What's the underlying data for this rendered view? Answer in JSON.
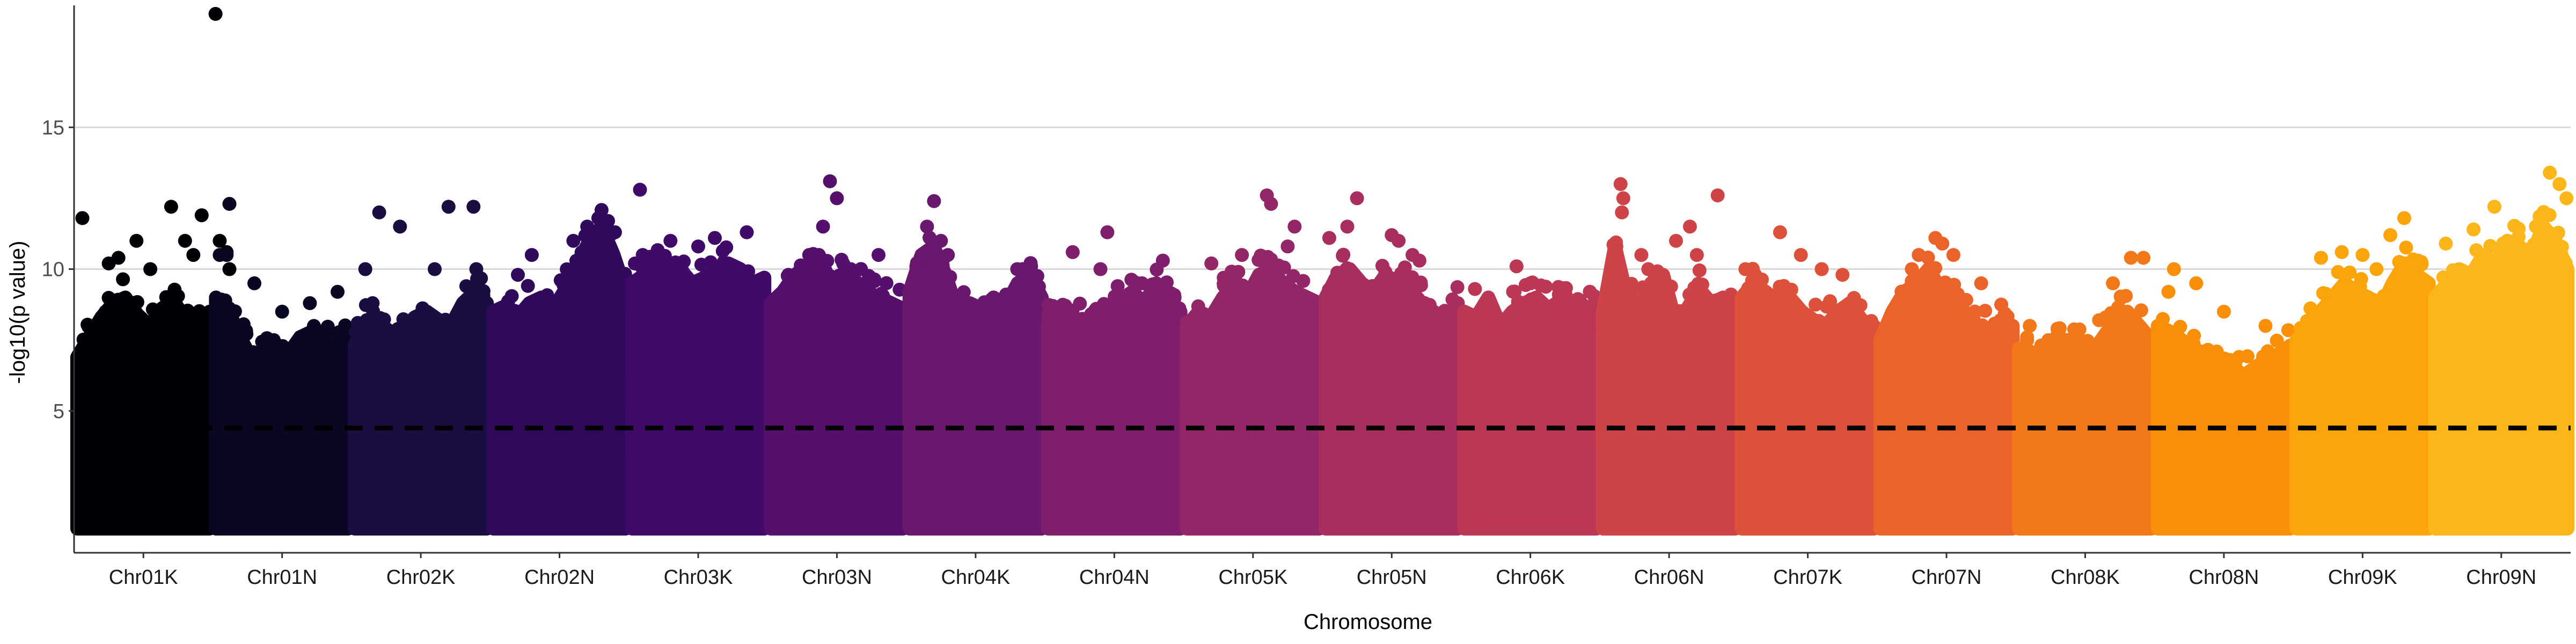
{
  "chart_data": {
    "type": "scatter",
    "subtype": "manhattan",
    "title": "",
    "xlabel": "Chromosome",
    "ylabel": "-log10(p value)",
    "ylim": [
      0,
      19.3
    ],
    "yticks": [
      5,
      10,
      15
    ],
    "grid": "horizontal-major",
    "legend": "none",
    "point_floor": 1.1,
    "threshold": {
      "value": 4.4,
      "style": "dashed",
      "color": "#000000"
    },
    "categories": [
      "Chr01K",
      "Chr01N",
      "Chr02K",
      "Chr02N",
      "Chr03K",
      "Chr03N",
      "Chr04K",
      "Chr04N",
      "Chr05K",
      "Chr05N",
      "Chr06K",
      "Chr06N",
      "Chr07K",
      "Chr07N",
      "Chr08K",
      "Chr08N",
      "Chr09K",
      "Chr09N"
    ],
    "colors": [
      "#000004",
      "#0a0722",
      "#1b0c41",
      "#2f0a5b",
      "#420a68",
      "#550f6d",
      "#6a176e",
      "#7e1e6c",
      "#932667",
      "#a82e5f",
      "#bc3754",
      "#cd4347",
      "#dd513a",
      "#eb6328",
      "#f37819",
      "#f98e09",
      "#fca50a",
      "#fbb61a"
    ],
    "series": [
      {
        "name": "Chr01K",
        "dense_top": [
          6.9,
          7.6,
          8.3,
          8.8,
          9.0,
          8.4,
          8.0,
          8.6,
          8.9,
          8.2,
          7.8,
          8.5
        ],
        "peaks": [
          [
            0.06,
            11.8
          ],
          [
            0.25,
            10.2
          ],
          [
            0.32,
            10.4
          ],
          [
            0.45,
            11.0
          ],
          [
            0.55,
            10.0
          ],
          [
            0.7,
            12.2
          ],
          [
            0.8,
            11.0
          ],
          [
            0.86,
            10.5
          ],
          [
            0.92,
            11.9
          ],
          [
            1.02,
            19.0
          ],
          [
            1.05,
            11.0
          ],
          [
            1.1,
            10.6
          ],
          [
            1.12,
            10.0
          ]
        ]
      },
      {
        "name": "Chr01N",
        "dense_top": [
          9.0,
          8.5,
          7.6,
          6.8,
          6.9,
          7.3,
          7.0,
          7.6,
          7.8,
          7.5,
          7.2,
          7.8
        ],
        "peaks": [
          [
            0.05,
            10.5
          ],
          [
            0.12,
            12.3
          ],
          [
            0.1,
            10.5
          ],
          [
            0.3,
            9.5
          ],
          [
            0.5,
            8.5
          ],
          [
            0.7,
            8.8
          ],
          [
            0.9,
            9.2
          ]
        ]
      },
      {
        "name": "Chr02K",
        "dense_top": [
          7.3,
          8.2,
          8.0,
          7.6,
          7.9,
          8.3,
          8.5,
          8.2,
          8.0,
          8.8,
          9.2,
          8.8
        ],
        "peaks": [
          [
            0.1,
            10.0
          ],
          [
            0.2,
            12.0
          ],
          [
            0.35,
            11.5
          ],
          [
            0.7,
            12.2
          ],
          [
            0.88,
            12.2
          ],
          [
            0.9,
            10.0
          ],
          [
            0.6,
            10.0
          ]
        ]
      },
      {
        "name": "Chr02N",
        "dense_top": [
          8.5,
          8.7,
          8.3,
          8.8,
          9.0,
          8.6,
          9.3,
          10.2,
          11.0,
          11.5,
          10.5,
          9.2
        ],
        "peaks": [
          [
            0.2,
            9.8
          ],
          [
            0.3,
            10.5
          ],
          [
            0.6,
            11.0
          ],
          [
            0.7,
            11.5
          ],
          [
            0.78,
            11.8
          ],
          [
            0.85,
            11.7
          ],
          [
            0.9,
            11.3
          ]
        ]
      },
      {
        "name": "Chr03K",
        "dense_top": [
          9.5,
          9.8,
          10.2,
          9.8,
          10.0,
          9.5,
          9.7,
          9.9,
          10.2,
          10.0,
          9.5,
          9.7
        ],
        "peaks": [
          [
            0.08,
            12.8
          ],
          [
            0.1,
            10.5
          ],
          [
            0.3,
            11.0
          ],
          [
            0.5,
            10.8
          ],
          [
            0.62,
            11.1
          ],
          [
            0.7,
            10.0
          ],
          [
            0.85,
            11.3
          ]
        ]
      },
      {
        "name": "Chr03N",
        "dense_top": [
          8.8,
          9.2,
          9.8,
          10.0,
          10.5,
          9.5,
          9.8,
          9.6,
          9.2,
          9.0,
          8.8,
          8.6
        ],
        "peaks": [
          [
            0.15,
            9.8
          ],
          [
            0.3,
            10.5
          ],
          [
            0.4,
            11.5
          ],
          [
            0.45,
            13.1
          ],
          [
            0.5,
            12.5
          ],
          [
            0.6,
            10.0
          ],
          [
            0.8,
            10.5
          ]
        ]
      },
      {
        "name": "Chr04K",
        "dense_top": [
          9.2,
          10.5,
          10.8,
          9.8,
          8.5,
          8.8,
          8.6,
          9.0,
          8.7,
          9.5,
          9.8,
          9.0
        ],
        "peaks": [
          [
            0.15,
            11.5
          ],
          [
            0.2,
            12.4
          ],
          [
            0.25,
            11.0
          ],
          [
            0.3,
            10.5
          ],
          [
            0.8,
            10.0
          ],
          [
            0.9,
            10.1
          ]
        ]
      },
      {
        "name": "Chr04N",
        "dense_top": [
          8.2,
          8.5,
          8.3,
          8.0,
          8.6,
          8.4,
          8.9,
          9.2,
          8.8,
          9.5,
          9.0,
          8.5
        ],
        "peaks": [
          [
            0.2,
            10.6
          ],
          [
            0.4,
            10.0
          ],
          [
            0.45,
            11.3
          ],
          [
            0.85,
            10.3
          ],
          [
            0.7,
            9.5
          ]
        ]
      },
      {
        "name": "Chr05K",
        "dense_top": [
          8.0,
          8.5,
          8.3,
          9.0,
          9.5,
          9.0,
          9.8,
          10.0,
          9.5,
          9.2,
          9.0,
          8.8
        ],
        "peaks": [
          [
            0.2,
            10.2
          ],
          [
            0.42,
            10.5
          ],
          [
            0.6,
            12.6
          ],
          [
            0.63,
            12.3
          ],
          [
            0.68,
            10.0
          ],
          [
            0.75,
            10.8
          ],
          [
            0.8,
            11.5
          ]
        ]
      },
      {
        "name": "Chr05N",
        "dense_top": [
          9.0,
          9.8,
          10.0,
          9.5,
          9.2,
          9.8,
          9.5,
          9.3,
          8.8,
          8.5,
          8.2,
          8.8
        ],
        "peaks": [
          [
            0.05,
            11.1
          ],
          [
            0.18,
            11.5
          ],
          [
            0.25,
            12.5
          ],
          [
            0.5,
            11.2
          ],
          [
            0.55,
            11.0
          ],
          [
            0.65,
            10.5
          ],
          [
            0.7,
            10.3
          ]
        ]
      },
      {
        "name": "Chr06K",
        "dense_top": [
          8.5,
          8.3,
          9.0,
          8.0,
          8.5,
          8.8,
          9.0,
          8.6,
          8.9,
          8.4,
          8.7,
          8.3
        ],
        "peaks": [
          [
            0.1,
            9.3
          ],
          [
            0.4,
            10.1
          ],
          [
            0.5,
            9.5
          ],
          [
            0.75,
            9.3
          ]
        ]
      },
      {
        "name": "Chr06N",
        "dense_top": [
          8.5,
          10.8,
          9.0,
          8.5,
          9.5,
          9.8,
          8.2,
          8.6,
          9.3,
          8.8,
          9.0,
          8.5
        ],
        "peaks": [
          [
            0.15,
            13.0
          ],
          [
            0.17,
            12.5
          ],
          [
            0.16,
            12.0
          ],
          [
            0.3,
            10.5
          ],
          [
            0.35,
            10.0
          ],
          [
            0.65,
            11.5
          ],
          [
            0.55,
            11.0
          ],
          [
            0.85,
            12.6
          ],
          [
            0.7,
            10.5
          ]
        ]
      },
      {
        "name": "Chr07K",
        "dense_top": [
          9.0,
          9.5,
          9.2,
          8.8,
          9.0,
          8.5,
          8.2,
          8.0,
          8.5,
          8.8,
          8.2,
          8.0
        ],
        "peaks": [
          [
            0.05,
            10.0
          ],
          [
            0.12,
            9.8
          ],
          [
            0.3,
            11.3
          ],
          [
            0.45,
            10.5
          ],
          [
            0.6,
            10.0
          ],
          [
            0.75,
            9.8
          ]
        ]
      },
      {
        "name": "Chr07N",
        "dense_top": [
          7.5,
          8.5,
          9.2,
          9.5,
          10.0,
          9.3,
          8.8,
          8.5,
          8.0,
          7.8,
          8.2,
          8.0
        ],
        "peaks": [
          [
            0.25,
            10.0
          ],
          [
            0.3,
            10.5
          ],
          [
            0.42,
            11.1
          ],
          [
            0.47,
            10.9
          ],
          [
            0.55,
            10.5
          ],
          [
            0.75,
            9.5
          ]
        ]
      },
      {
        "name": "Chr08K",
        "dense_top": [
          7.2,
          7.0,
          6.8,
          7.2,
          7.5,
          7.3,
          7.0,
          7.6,
          8.2,
          8.5,
          8.0,
          7.5
        ],
        "peaks": [
          [
            0.1,
            8.0
          ],
          [
            0.3,
            7.9
          ],
          [
            0.7,
            9.5
          ],
          [
            0.83,
            10.4
          ],
          [
            0.92,
            10.4
          ],
          [
            0.6,
            8.2
          ]
        ]
      },
      {
        "name": "Chr08N",
        "dense_top": [
          8.0,
          7.8,
          7.5,
          7.0,
          6.8,
          6.5,
          6.8,
          6.2,
          6.5,
          6.8,
          7.0,
          7.3
        ],
        "peaks": [
          [
            0.1,
            9.2
          ],
          [
            0.14,
            10.0
          ],
          [
            0.3,
            9.5
          ],
          [
            0.5,
            8.5
          ],
          [
            0.8,
            8.0
          ]
        ]
      },
      {
        "name": "Chr09K",
        "dense_top": [
          7.5,
          8.0,
          8.5,
          9.0,
          9.5,
          9.2,
          9.0,
          8.6,
          9.5,
          10.2,
          9.8,
          9.5
        ],
        "peaks": [
          [
            0.2,
            10.4
          ],
          [
            0.35,
            10.6
          ],
          [
            0.5,
            10.5
          ],
          [
            0.6,
            10.0
          ],
          [
            0.7,
            11.2
          ],
          [
            0.8,
            11.8
          ],
          [
            0.9,
            10.3
          ]
        ]
      },
      {
        "name": "Chr09N",
        "dense_top": [
          9.0,
          9.5,
          10.0,
          9.8,
          10.5,
          10.2,
          11.0,
          10.8,
          10.5,
          11.5,
          11.0,
          10.0
        ],
        "peaks": [
          [
            0.1,
            10.9
          ],
          [
            0.3,
            11.4
          ],
          [
            0.45,
            12.2
          ],
          [
            0.6,
            11.0
          ],
          [
            0.75,
            11.5
          ],
          [
            0.85,
            13.4
          ],
          [
            0.92,
            13.0
          ],
          [
            0.97,
            12.5
          ]
        ]
      }
    ]
  }
}
